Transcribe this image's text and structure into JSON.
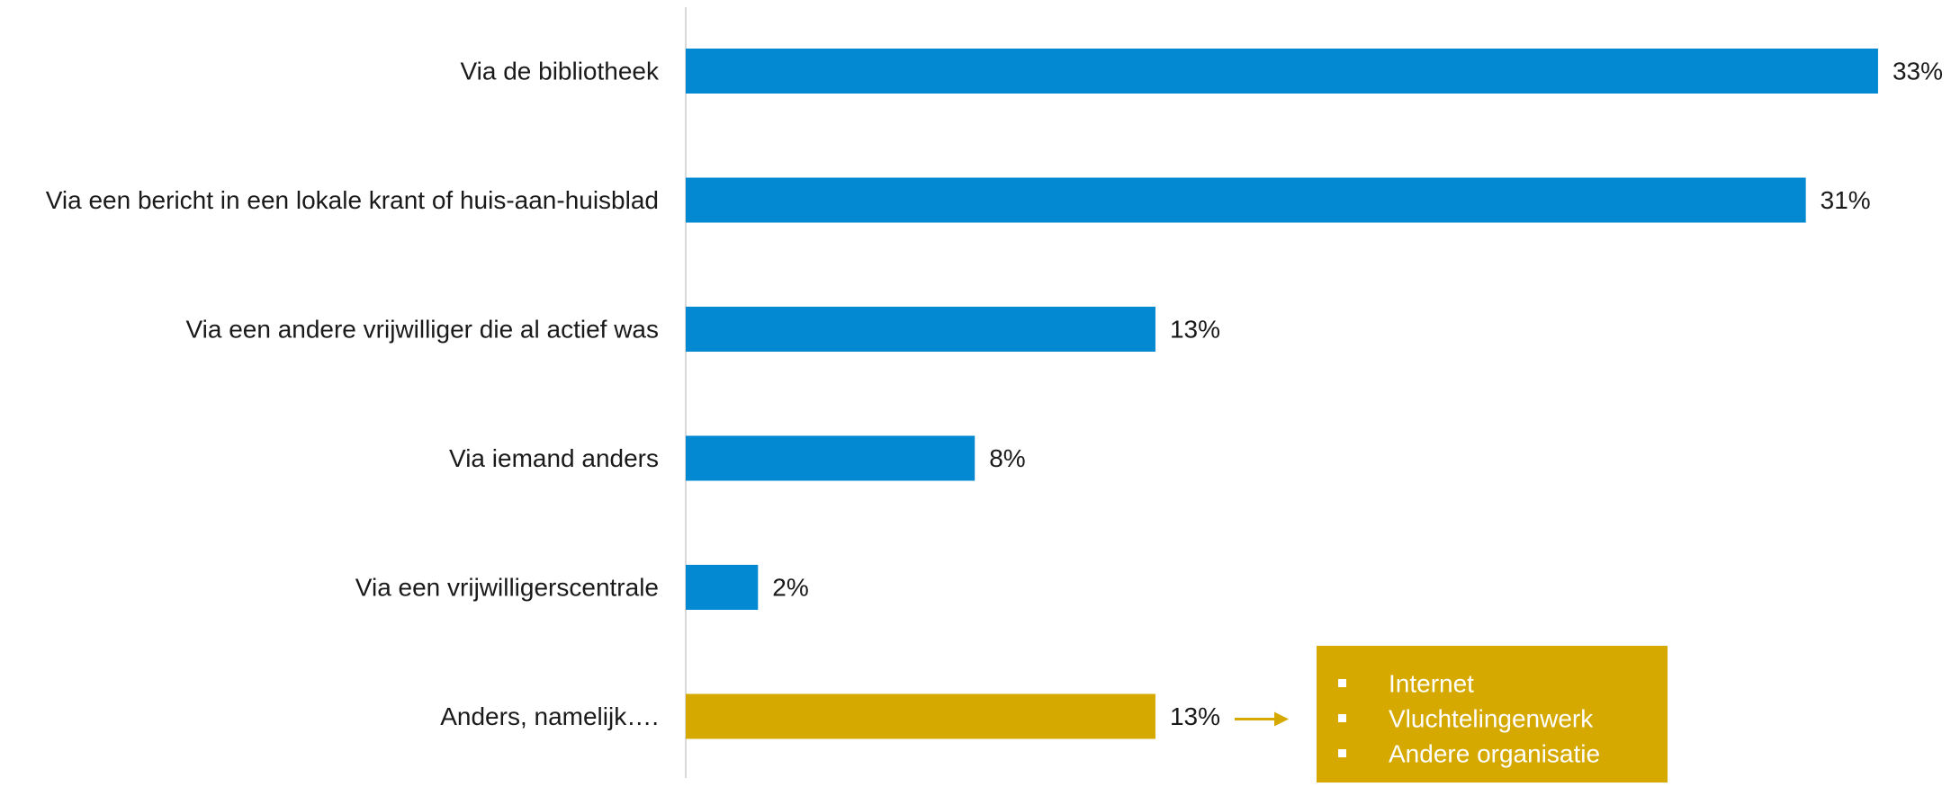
{
  "chart_data": {
    "type": "bar",
    "orientation": "horizontal",
    "categories": [
      "Via de bibliotheek",
      "Via een bericht in een lokale krant of huis-aan-huisblad",
      "Via een andere vrijwilliger die al actief was",
      "Via iemand anders",
      "Via een vrijwilligerscentrale",
      "Anders, namelijk…."
    ],
    "values": [
      33,
      31,
      13,
      8,
      2,
      13
    ],
    "value_labels": [
      "33%",
      "31%",
      "13%",
      "8%",
      "2%",
      "13%"
    ],
    "bar_colors": [
      "#0289D1",
      "#0289D1",
      "#0289D1",
      "#0289D1",
      "#0289D1",
      "#D6A900"
    ],
    "xlim": [
      0,
      34.5
    ],
    "grid": false,
    "legend": "none",
    "annotation": {
      "background": "#D6A900",
      "text_color": "#ffffff",
      "arrow_color": "#D6A900",
      "items": [
        "Internet",
        "Vluchtelingenwerk",
        "Andere organisatie"
      ]
    }
  }
}
